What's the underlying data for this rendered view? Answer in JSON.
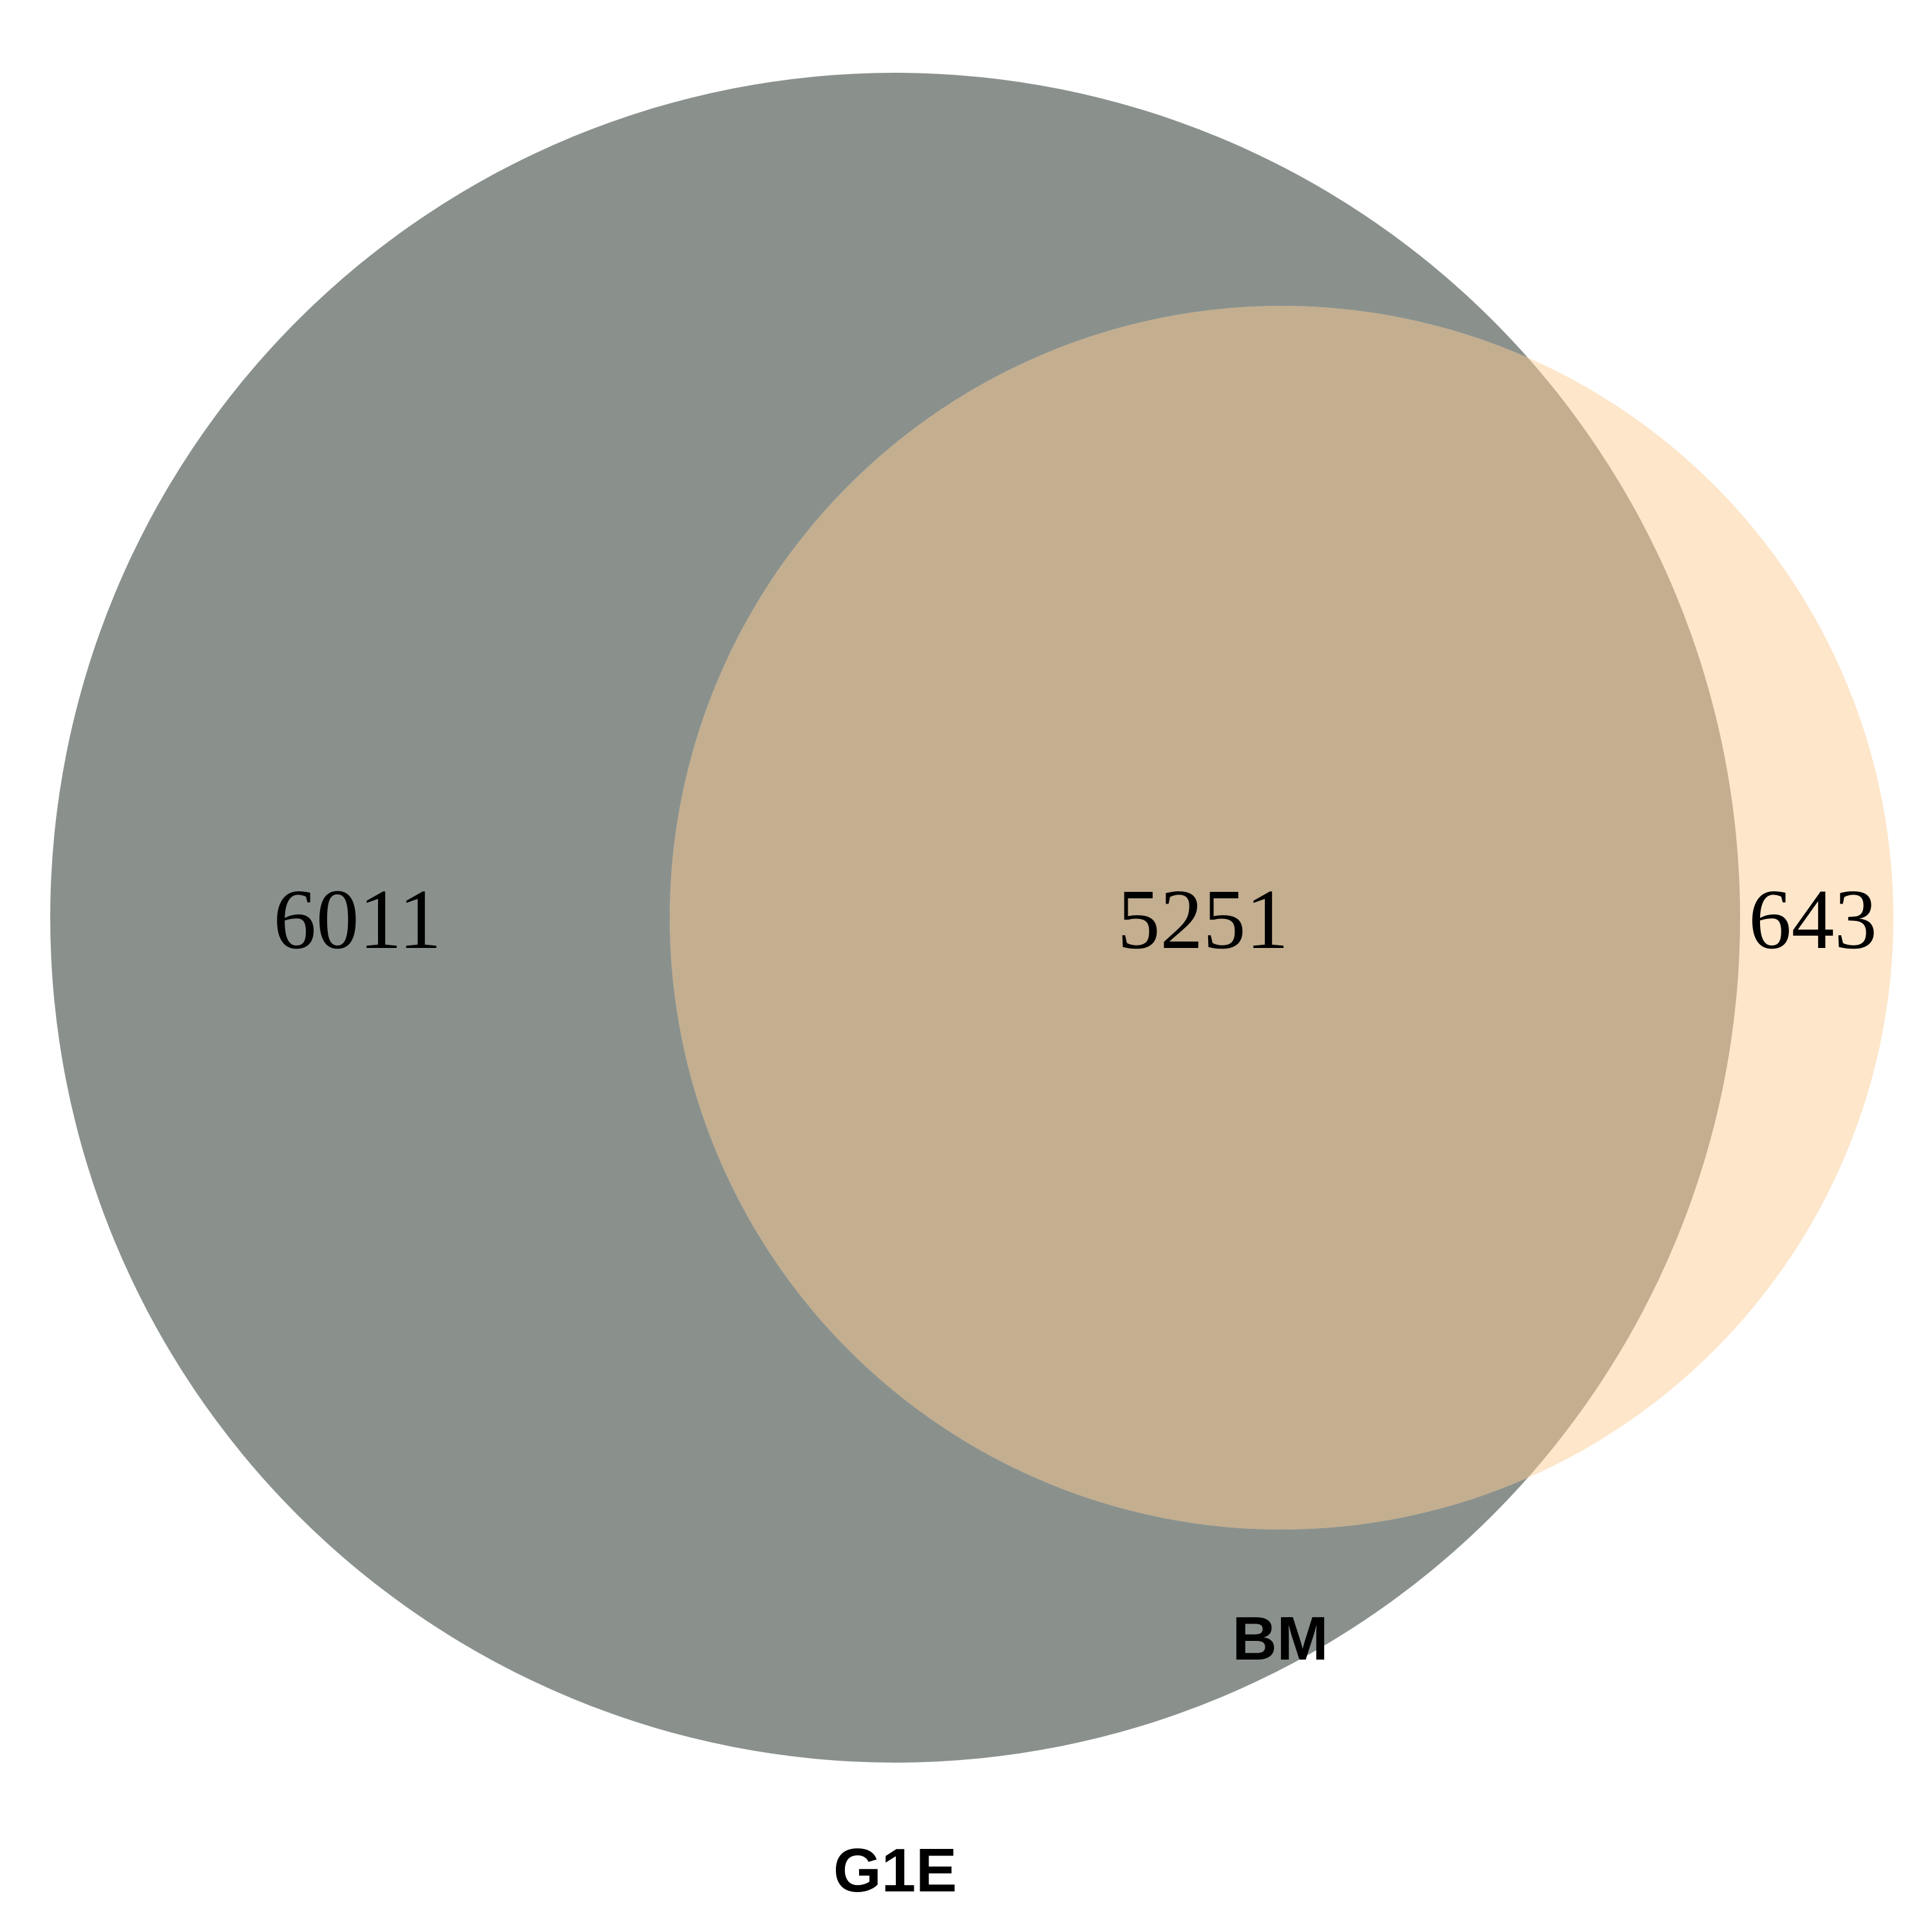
{
  "venn": {
    "sets": [
      {
        "name": "G1E",
        "color": "#8A918D"
      },
      {
        "name": "BM",
        "color": "#FDE6CA"
      }
    ],
    "overlap_color": "#C3AE90",
    "counts": {
      "g1e_only": "6011",
      "both": "5251",
      "bm_only": "643"
    }
  }
}
